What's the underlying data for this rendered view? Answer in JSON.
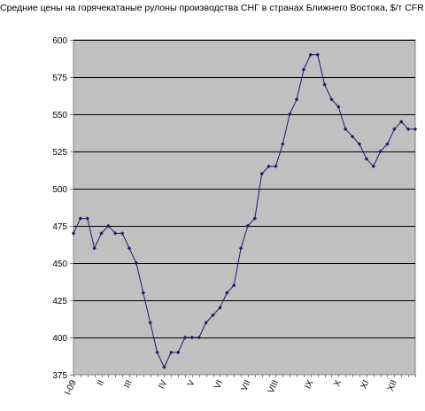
{
  "chart_data": {
    "type": "line",
    "title": "Средние цены на горячекатаные рулоны производства СНГ в странах Ближнего Востока, $/т CFR",
    "xlabel": "",
    "ylabel": "",
    "ylim": [
      375,
      600
    ],
    "yticks": [
      375,
      400,
      425,
      450,
      475,
      500,
      525,
      550,
      575,
      600
    ],
    "grid": true,
    "legend": "none",
    "x_tick_labels": [
      "I-09",
      "II",
      "III",
      "IV",
      "V",
      "VI",
      "VII",
      "VIII",
      "IX",
      "X",
      "XI",
      "XII"
    ],
    "x_tick_index": [
      0,
      4,
      8,
      13,
      17,
      21,
      25,
      29,
      34,
      38,
      42,
      46
    ],
    "series": [
      {
        "values": [
          470,
          480,
          480,
          460,
          470,
          475,
          470,
          470,
          460,
          450,
          430,
          410,
          390,
          380,
          390,
          390,
          400,
          400,
          400,
          410,
          415,
          420,
          430,
          435,
          460,
          475,
          480,
          510,
          515,
          515,
          530,
          550,
          560,
          580,
          590,
          590,
          570,
          560,
          555,
          540,
          535,
          530,
          520,
          515,
          525,
          530,
          540,
          545,
          540,
          540
        ]
      }
    ],
    "colors": {
      "plot_bg": "#c0c0c0",
      "line": "#1a1a66",
      "grid": "#000000",
      "axis": "#808080"
    }
  }
}
